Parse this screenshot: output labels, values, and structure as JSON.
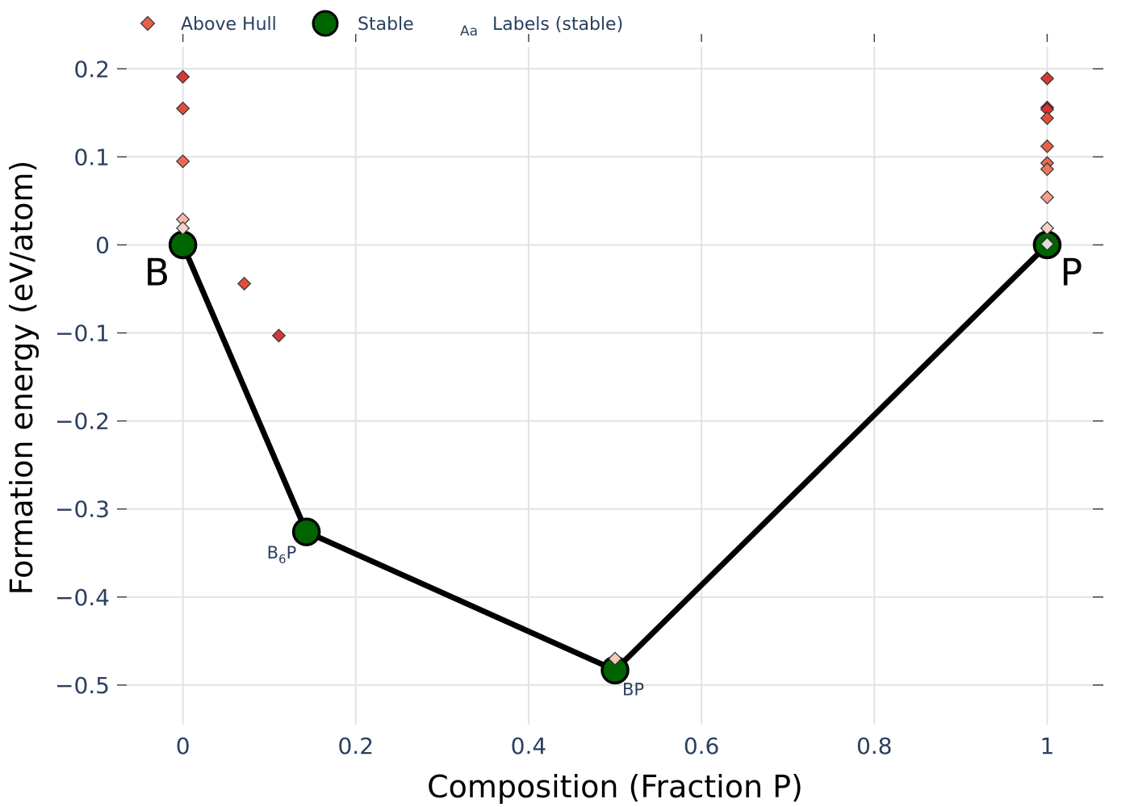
{
  "chart_data": {
    "type": "scatter",
    "xlabel": "Composition (Fraction P)",
    "ylabel": "Formation energy (eV/atom)",
    "xlim": [
      -0.065,
      1.065
    ],
    "ylim": [
      -0.545,
      0.225
    ],
    "x_ticks": [
      0,
      0.2,
      0.4,
      0.6,
      0.8,
      1
    ],
    "x_tick_labels": [
      "0",
      "0.2",
      "0.4",
      "0.6",
      "0.8",
      "1"
    ],
    "y_ticks": [
      0.2,
      0.1,
      0,
      -0.1,
      -0.2,
      -0.3,
      -0.4,
      -0.5
    ],
    "y_tick_labels": [
      "0.2",
      "0.1",
      "0",
      "−0.1",
      "−0.2",
      "−0.3",
      "−0.4",
      "−0.5"
    ],
    "grid": true,
    "legend_placement": "top-left",
    "legend": [
      {
        "label": "Above Hull",
        "marker": "diamond",
        "color": "#e8604a"
      },
      {
        "label": "Stable",
        "marker": "circle",
        "color": "#006400"
      },
      {
        "label": "Labels (stable)",
        "marker": "text",
        "glyph": "Aa"
      }
    ],
    "series": [
      {
        "name": "Stable",
        "marker": "circle",
        "color": "#006400",
        "x": [
          0,
          0.1429,
          0.5,
          1
        ],
        "y": [
          0,
          -0.326,
          -0.483,
          0
        ]
      },
      {
        "name": "Above Hull",
        "marker": "diamond",
        "x": [
          0,
          0,
          0,
          0,
          0,
          0.071,
          0.111,
          0.5,
          1,
          1,
          1,
          1,
          1,
          1,
          1,
          1,
          1,
          1,
          1
        ],
        "y": [
          0.191,
          0.155,
          0.095,
          0.029,
          0.019,
          -0.044,
          -0.103,
          -0.47,
          0.189,
          0.156,
          0.154,
          0.144,
          0.112,
          0.093,
          0.086,
          0.054,
          0.019,
          0.002,
          0.001
        ],
        "colors": [
          "#d23b32",
          "#e04e3e",
          "#ea6a54",
          "#f7b8a4",
          "#f5d3c6",
          "#e04e3e",
          "#d23b32",
          "#f3cbb8",
          "#d23b32",
          "#c41818",
          "#e03030",
          "#e04e3e",
          "#e8604a",
          "#ea6a54",
          "#ec7560",
          "#f4a08a",
          "#f5d3c6",
          "#e8e8d8",
          "#d8e4d0"
        ]
      }
    ],
    "hull_line": {
      "color": "#000000",
      "x": [
        0,
        0.1429,
        0.5,
        1
      ],
      "y": [
        0,
        -0.326,
        -0.483,
        0
      ]
    },
    "element_labels": [
      {
        "text": "B",
        "x": 0,
        "y": 0,
        "anchor": "left"
      },
      {
        "text": "P",
        "x": 1,
        "y": 0,
        "anchor": "right"
      }
    ],
    "compound_labels": [
      {
        "base": "B",
        "sub": "6",
        "tail": "P",
        "x": 0.1429,
        "y": -0.326
      },
      {
        "base": "BP",
        "sub": "",
        "tail": "",
        "x": 0.5,
        "y": -0.483
      }
    ]
  }
}
